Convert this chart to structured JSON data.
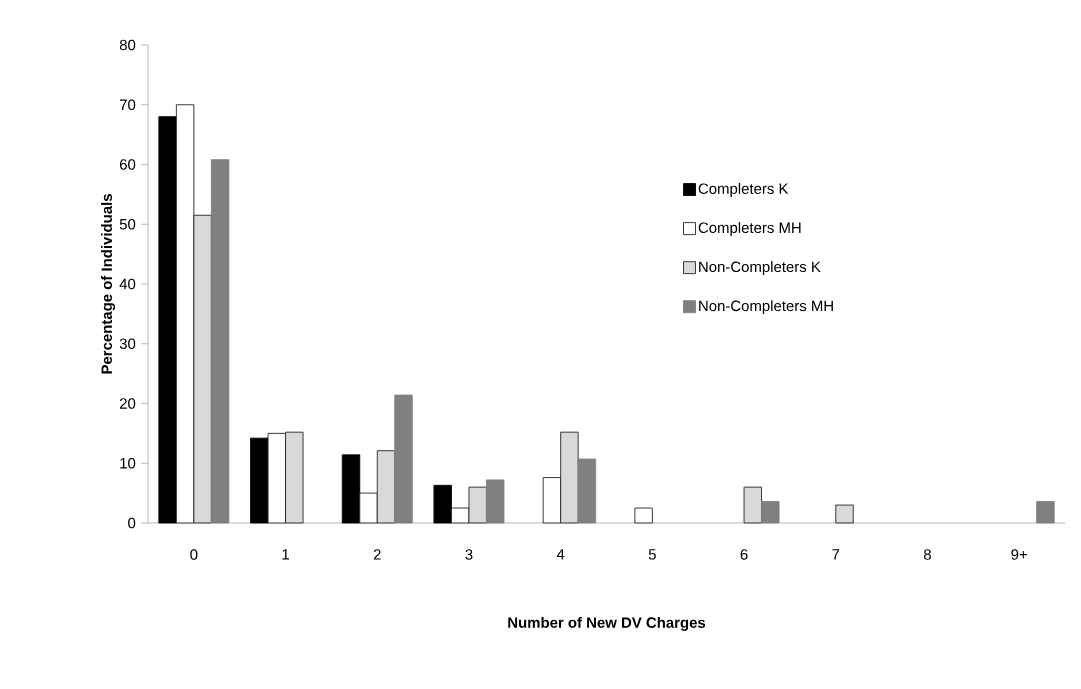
{
  "chart_data": {
    "type": "bar",
    "xlabel": "Number of New DV Charges",
    "ylabel": "Percentage of Individuals",
    "categories": [
      "0",
      "1",
      "2",
      "3",
      "4",
      "5",
      "6",
      "7",
      "8",
      "9+"
    ],
    "series": [
      {
        "name": "Completers K",
        "color": "#000000",
        "values": [
          68,
          14.2,
          11.4,
          6.3,
          null,
          null,
          null,
          null,
          null,
          null
        ]
      },
      {
        "name": "Completers MH",
        "color": "#ffffff",
        "values": [
          70,
          15,
          5,
          2.5,
          7.6,
          2.5,
          null,
          null,
          null,
          null
        ]
      },
      {
        "name": "Non-Completers K",
        "color": "#d9d9d9",
        "values": [
          51.5,
          15.2,
          12.1,
          6,
          15.2,
          null,
          6,
          3,
          null,
          null
        ]
      },
      {
        "name": "Non-Completers MH",
        "color": "#808080",
        "values": [
          60.8,
          null,
          21.4,
          7.2,
          10.7,
          null,
          3.6,
          null,
          null,
          3.6
        ]
      }
    ],
    "ylim": [
      0,
      80
    ],
    "yticks": [
      0,
      10,
      20,
      30,
      40,
      50,
      60,
      70,
      80
    ],
    "grid": false,
    "legend": "right"
  }
}
